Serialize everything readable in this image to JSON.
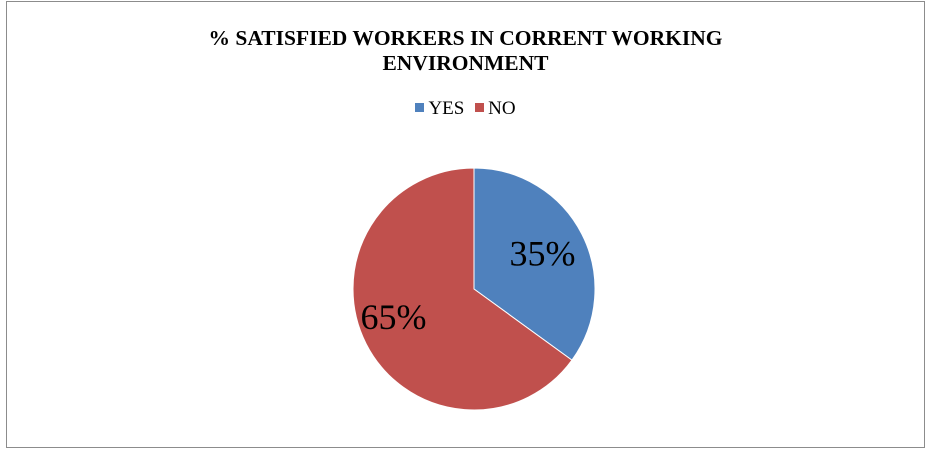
{
  "chart_data": {
    "type": "pie",
    "title_lines": [
      "% SATISFIED WORKERS IN CORRENT WORKING",
      "ENVIRONMENT"
    ],
    "categories": [
      "YES",
      "NO"
    ],
    "values": [
      35,
      65
    ],
    "data_labels": [
      "35%",
      "65%"
    ],
    "colors": [
      "#4f81bd",
      "#c0504d"
    ],
    "legend_position": "top"
  }
}
